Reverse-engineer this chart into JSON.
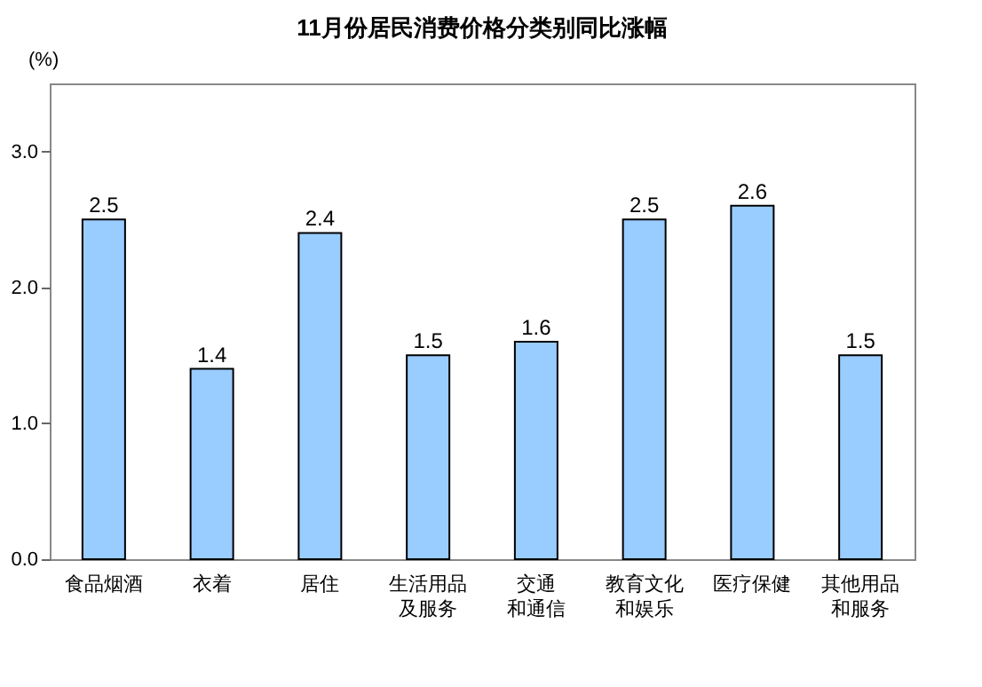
{
  "chart_data": {
    "type": "bar",
    "title": "11月份居民消费价格分类别同比涨幅",
    "ylabel": "(%)",
    "categories": [
      "食品烟酒",
      "衣着",
      "居住",
      "生活用品及服务",
      "交通和通信",
      "教育文化和娱乐",
      "医疗保健",
      "其他用品和服务"
    ],
    "values": [
      2.5,
      1.4,
      2.4,
      1.5,
      1.6,
      2.5,
      2.6,
      1.5
    ],
    "color": "#99ccff",
    "ylim": [
      0,
      3.5
    ],
    "yticks": [
      {
        "value": 0,
        "label": "0.0"
      },
      {
        "value": 1,
        "label": "1.0"
      },
      {
        "value": 2,
        "label": "2.0"
      },
      {
        "value": 3,
        "label": "3.0"
      }
    ],
    "grid": false,
    "data_labels": true
  }
}
